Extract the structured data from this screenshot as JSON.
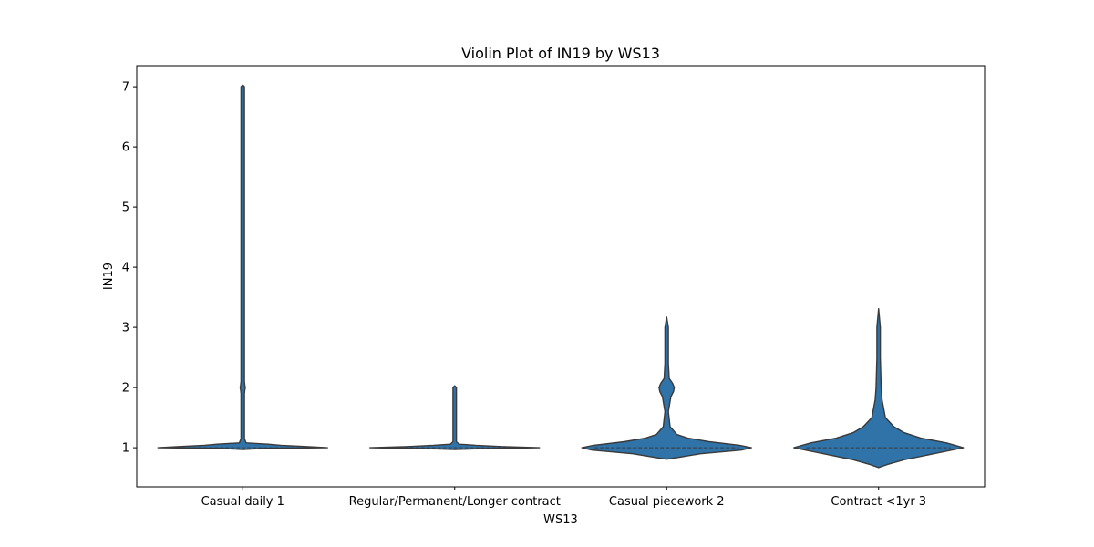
{
  "chart_data": {
    "type": "violin",
    "title": "Violin Plot of IN19 by WS13",
    "xlabel": "WS13",
    "ylabel": "IN19",
    "ylim": [
      0.35,
      7.35
    ],
    "yticks": [
      1,
      2,
      3,
      4,
      5,
      6,
      7
    ],
    "grid": false,
    "legend": "none",
    "colors": {
      "fill": "#2f73a9",
      "edge": "#3a3a3a",
      "inner": "#3a3a3a"
    },
    "categories": [
      "Casual daily 1",
      "Regular/Permanent/Longer contract",
      "Casual piecework 2",
      "Contract <1yr 3"
    ],
    "violins": [
      {
        "category": "Casual daily 1",
        "min": 0.97,
        "max": 7.03,
        "median": 1.0,
        "profile": [
          [
            0.97,
            0.0
          ],
          [
            0.98,
            0.12
          ],
          [
            0.99,
            0.3
          ],
          [
            1.0,
            1.0
          ],
          [
            1.02,
            0.75
          ],
          [
            1.04,
            0.45
          ],
          [
            1.06,
            0.3
          ],
          [
            1.08,
            0.04
          ],
          [
            1.15,
            0.02
          ],
          [
            1.9,
            0.02
          ],
          [
            1.96,
            0.025
          ],
          [
            2.0,
            0.03
          ],
          [
            2.04,
            0.025
          ],
          [
            2.1,
            0.02
          ],
          [
            7.0,
            0.02
          ],
          [
            7.03,
            0.0
          ]
        ]
      },
      {
        "category": "Regular/Permanent/Longer contract",
        "min": 0.97,
        "max": 2.03,
        "median": 1.0,
        "profile": [
          [
            0.97,
            0.0
          ],
          [
            0.98,
            0.2
          ],
          [
            0.99,
            0.55
          ],
          [
            1.0,
            1.0
          ],
          [
            1.02,
            0.55
          ],
          [
            1.04,
            0.25
          ],
          [
            1.06,
            0.05
          ],
          [
            1.1,
            0.02
          ],
          [
            2.0,
            0.02
          ],
          [
            2.03,
            0.0
          ]
        ]
      },
      {
        "category": "Casual piecework 2",
        "min": 0.81,
        "max": 3.17,
        "median": 1.0,
        "profile": [
          [
            0.81,
            0.0
          ],
          [
            0.84,
            0.14
          ],
          [
            0.9,
            0.4
          ],
          [
            0.96,
            0.88
          ],
          [
            1.0,
            1.0
          ],
          [
            1.04,
            0.86
          ],
          [
            1.1,
            0.5
          ],
          [
            1.16,
            0.25
          ],
          [
            1.22,
            0.12
          ],
          [
            1.35,
            0.04
          ],
          [
            1.6,
            0.02
          ],
          [
            1.85,
            0.05
          ],
          [
            1.93,
            0.08
          ],
          [
            2.0,
            0.09
          ],
          [
            2.07,
            0.07
          ],
          [
            2.15,
            0.03
          ],
          [
            2.4,
            0.02
          ],
          [
            3.0,
            0.02
          ],
          [
            3.17,
            0.0
          ]
        ]
      },
      {
        "category": "Contract <1yr 3",
        "min": 0.67,
        "max": 3.31,
        "median": 1.0,
        "profile": [
          [
            0.67,
            0.0
          ],
          [
            0.72,
            0.1
          ],
          [
            0.8,
            0.3
          ],
          [
            0.9,
            0.65
          ],
          [
            1.0,
            1.0
          ],
          [
            1.08,
            0.8
          ],
          [
            1.16,
            0.5
          ],
          [
            1.25,
            0.3
          ],
          [
            1.35,
            0.18
          ],
          [
            1.5,
            0.08
          ],
          [
            1.8,
            0.04
          ],
          [
            2.0,
            0.03
          ],
          [
            2.5,
            0.02
          ],
          [
            3.0,
            0.02
          ],
          [
            3.31,
            0.0
          ]
        ]
      }
    ]
  }
}
